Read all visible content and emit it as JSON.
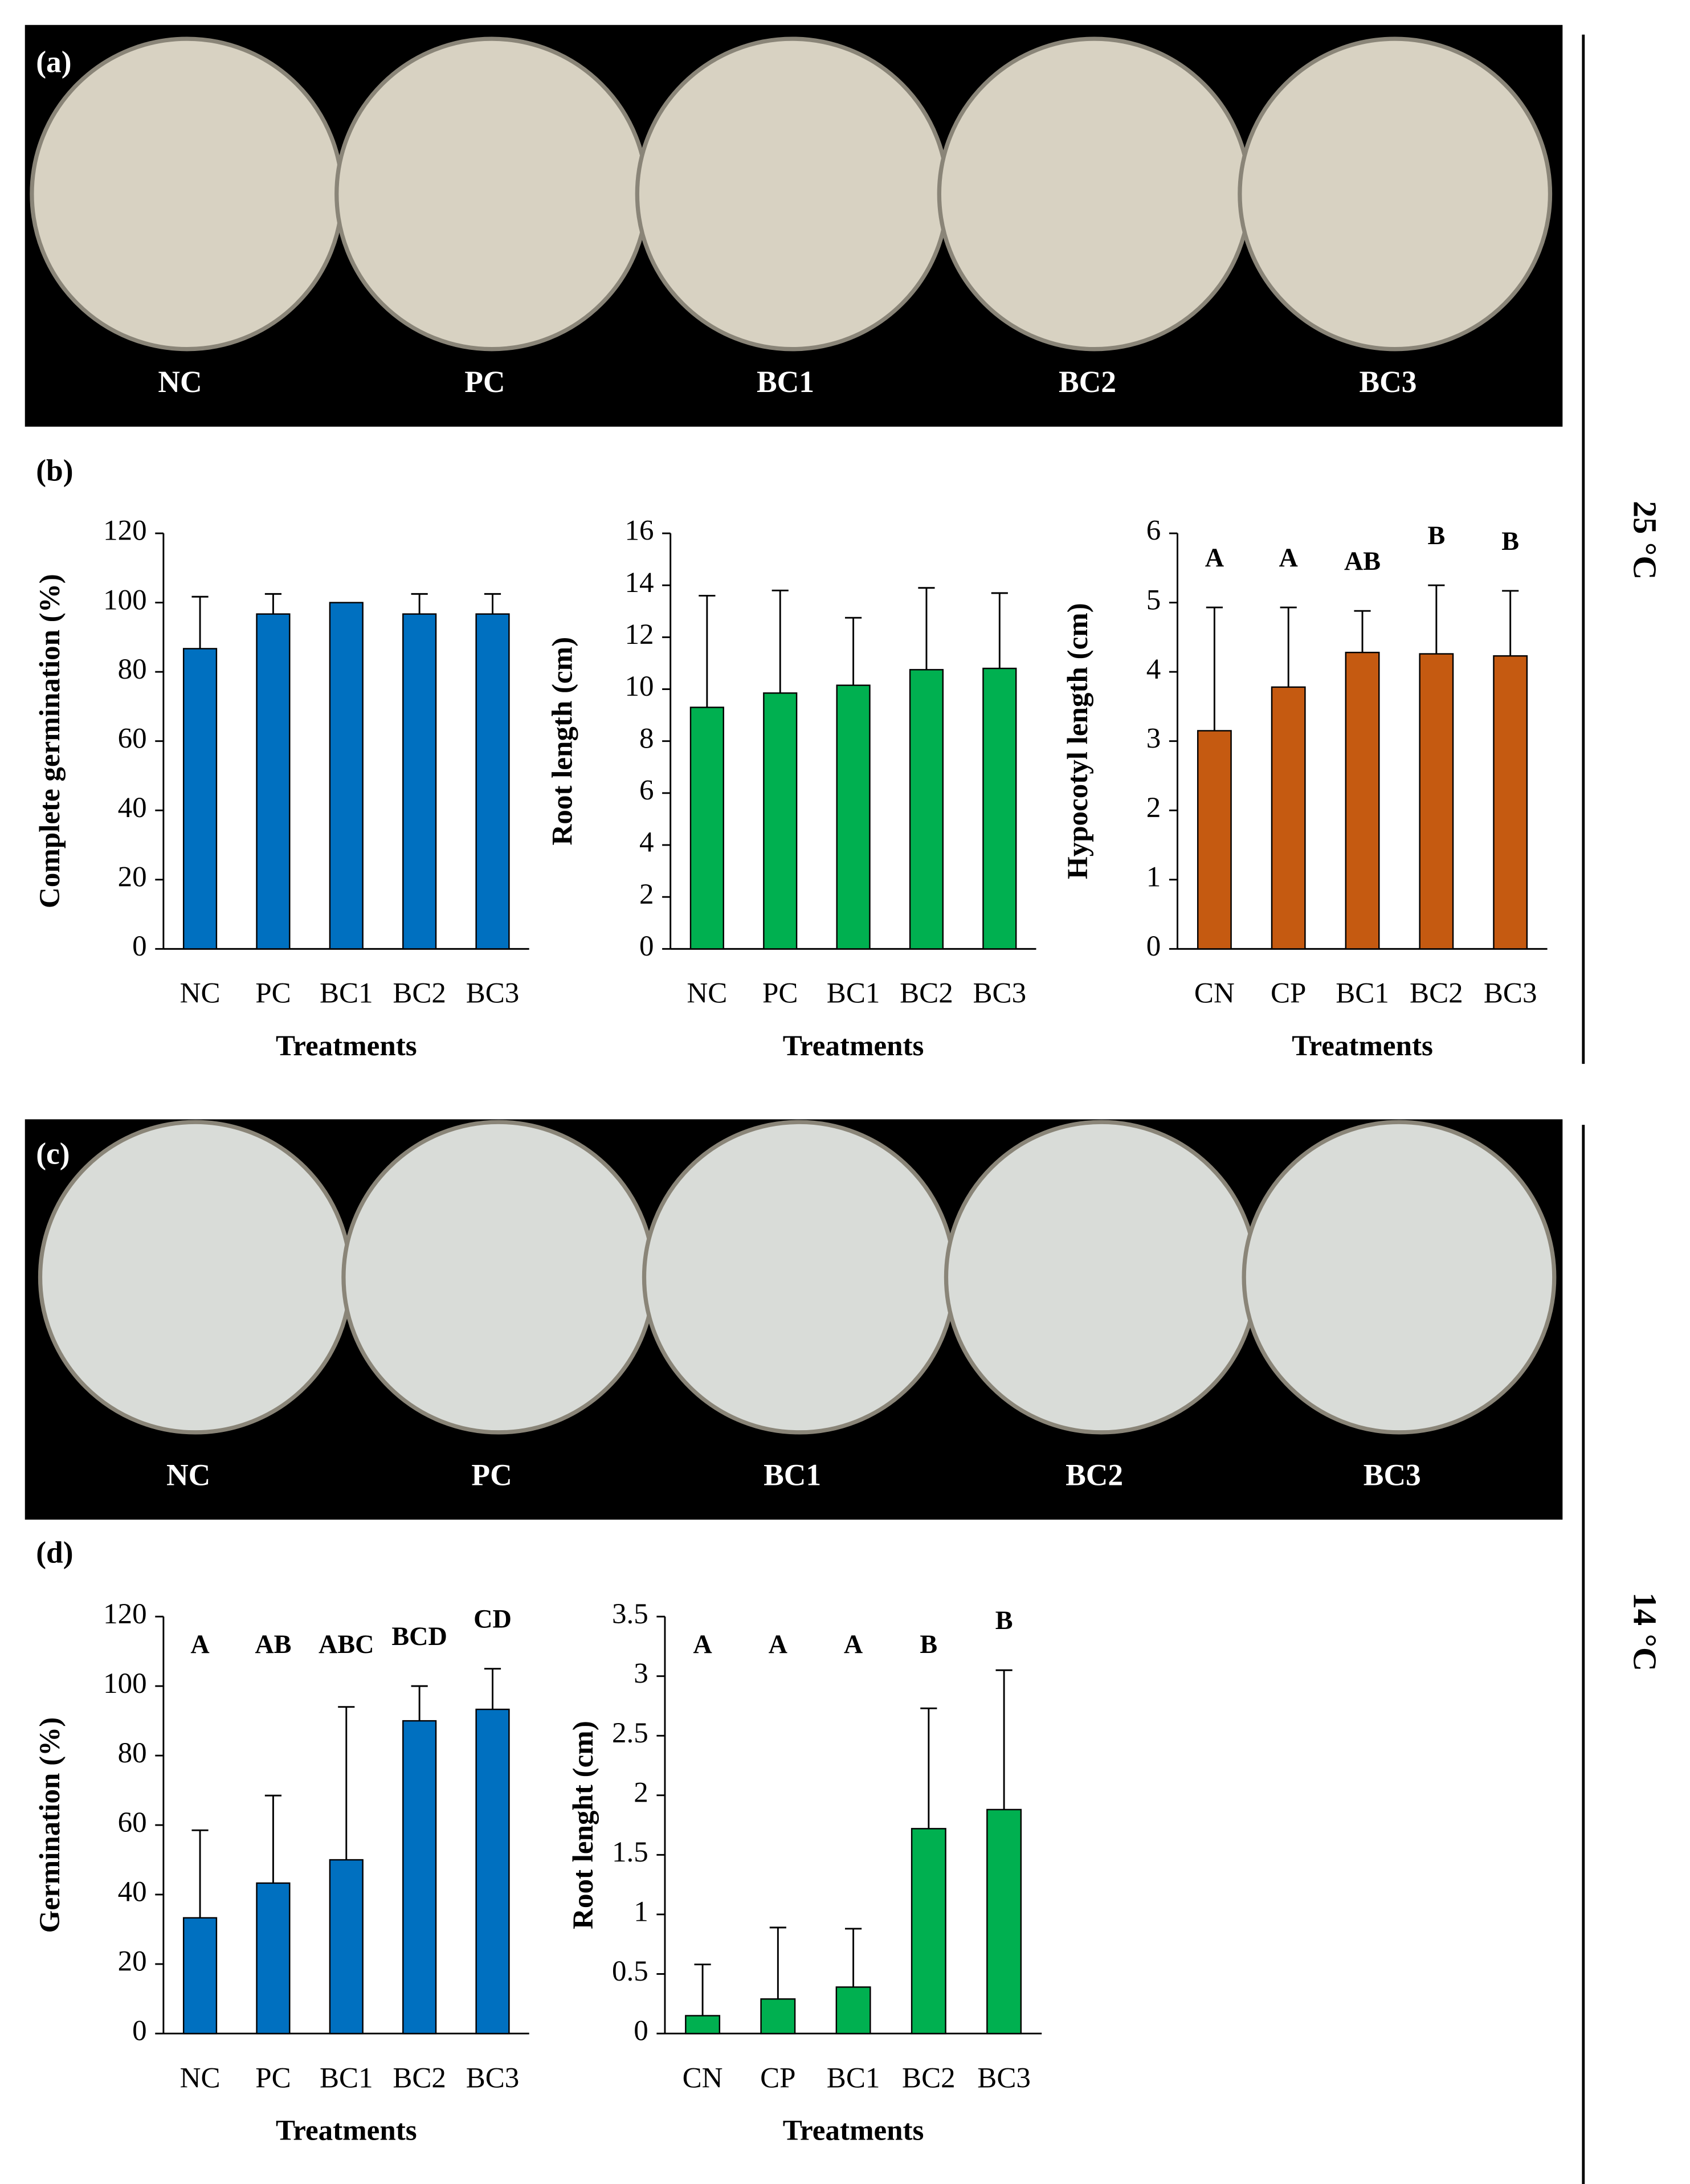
{
  "panel_labels": [
    "(a)",
    "(b)",
    "(c)",
    "(d)"
  ],
  "temperatures": [
    "25 °C",
    "14 °C"
  ],
  "photos": [
    {
      "labels": [
        "NC",
        "PC",
        "BC1",
        "BC2",
        "BC3"
      ]
    },
    {
      "labels": [
        "NC",
        "PC",
        "BC1",
        "BC2",
        "BC3"
      ]
    }
  ],
  "chart_data": [
    {
      "type": "bar",
      "y_label": "Complete germination (%)",
      "x_label": "Treatments",
      "categories": [
        "NC",
        "PC",
        "BC1",
        "BC2",
        "BC3"
      ],
      "values": [
        86.7,
        96.7,
        100,
        96.7,
        96.7
      ],
      "errors": [
        15,
        5.8,
        null,
        5.8,
        5.8
      ],
      "color": "#0070c0",
      "ylim": [
        0,
        120
      ],
      "yticks": [
        0,
        20,
        40,
        60,
        80,
        100,
        120
      ]
    },
    {
      "type": "bar",
      "y_label": "Root length (cm)",
      "x_label": "Treatments",
      "categories": [
        "NC",
        "PC",
        "BC1",
        "BC2",
        "BC3"
      ],
      "values": [
        9.3,
        9.85,
        10.15,
        10.75,
        10.8
      ],
      "errors": [
        4.3,
        3.95,
        2.6,
        3.15,
        2.9
      ],
      "color": "#00b050",
      "ylim": [
        0,
        16
      ],
      "yticks": [
        0,
        2,
        4,
        6,
        8,
        10,
        12,
        14,
        16
      ]
    },
    {
      "type": "bar",
      "y_label": "Hypocotyl length (cm)",
      "x_label": "Treatments",
      "categories": [
        "CN",
        "CP",
        "BC1",
        "BC2",
        "BC3"
      ],
      "values": [
        3.15,
        3.78,
        4.28,
        4.26,
        4.23
      ],
      "errors": [
        1.78,
        1.15,
        0.6,
        0.99,
        0.94
      ],
      "letters": [
        "A",
        "A",
        "AB",
        "B",
        "B"
      ],
      "color": "#c55a11",
      "ylim": [
        0,
        6
      ],
      "yticks": [
        0,
        1,
        2,
        3,
        4,
        5,
        6
      ]
    },
    {
      "type": "bar",
      "y_label": "Germination (%)",
      "x_label": "Treatments",
      "categories": [
        "NC",
        "PC",
        "BC1",
        "BC2",
        "BC3"
      ],
      "values": [
        33.3,
        43.3,
        50,
        90,
        93.3
      ],
      "errors": [
        25.2,
        25.2,
        44,
        10,
        11.7
      ],
      "letters": [
        "A",
        "AB",
        "ABC",
        "BCD",
        "CD"
      ],
      "color": "#0070c0",
      "ylim": [
        0,
        120
      ],
      "yticks": [
        0,
        20,
        40,
        60,
        80,
        100,
        120
      ]
    },
    {
      "type": "bar",
      "y_label": "Root lenght (cm)",
      "x_label": "Treatments",
      "categories": [
        "CN",
        "CP",
        "BC1",
        "BC2",
        "BC3"
      ],
      "values": [
        0.15,
        0.29,
        0.39,
        1.72,
        1.88
      ],
      "errors": [
        0.43,
        0.6,
        0.49,
        1.01,
        1.17
      ],
      "letters": [
        "A",
        "A",
        "A",
        "B",
        "B"
      ],
      "color": "#00b050",
      "ylim": [
        0,
        3.5
      ],
      "yticks": [
        0,
        0.5,
        1,
        1.5,
        2,
        2.5,
        3,
        3.5
      ]
    }
  ]
}
